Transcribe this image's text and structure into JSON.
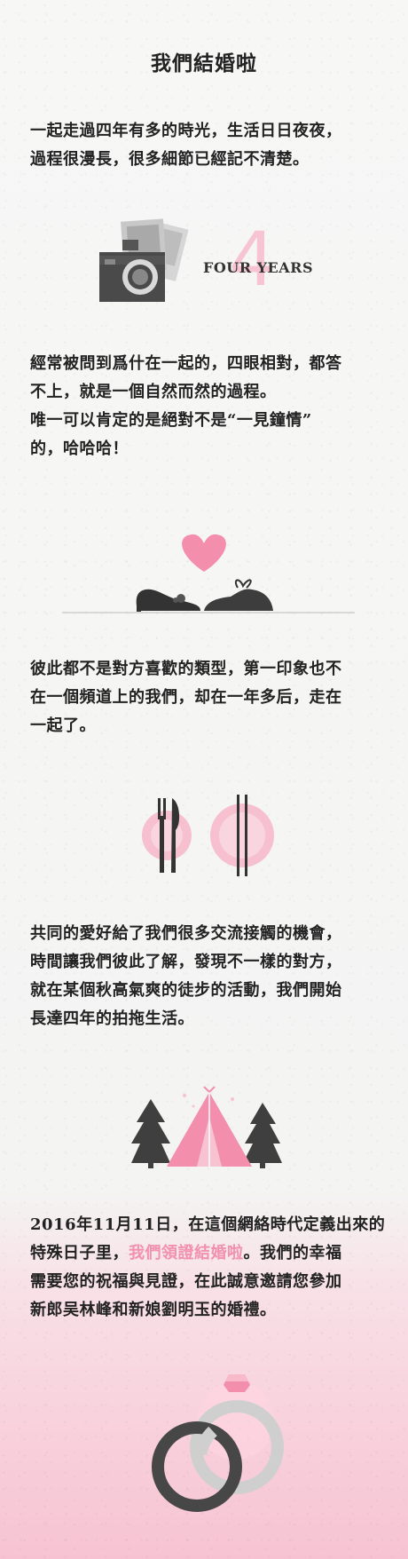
{
  "title": "我們結婚啦",
  "intro": {
    "lines": [
      "一起走過四年有多的時光，生活日日夜夜，",
      "過程很漫長，很多細節已經記不清楚。"
    ]
  },
  "four_years": {
    "label": "FOUR YEARS",
    "digit": "4"
  },
  "section1": {
    "lines": [
      "經常被問到爲什在一起的，四眼相對，都答",
      "不上，就是一個自然而然的過程。",
      "唯一可以肯定的是絕對不是“一見鐘情”",
      "的，哈哈哈！"
    ]
  },
  "section2": {
    "lines": [
      "彼此都不是對方喜歡的類型，第一印象也不",
      "在一個頻道上的我們，却在一年多后，走在",
      "一起了。"
    ]
  },
  "section3": {
    "lines": [
      "共同的愛好給了我們很多交流接觸的機會，",
      "時間讓我們彼此了解，發現不一樣的對方，",
      "就在某個秋高氣爽的徒步的活動，我們開始",
      "長達四年的拍拖生活。"
    ]
  },
  "section4": {
    "line1": "2016年11月11日，在這個網絡時代定義出來的",
    "line2_pre": "特殊日子里，",
    "line2_pink": "我們領證結婚啦",
    "line2_post": "。我們的幸福",
    "line3": "需要您的祝福與見證，在此誠意邀請您參加",
    "line4": "新郎吴林峰和新娘劉明玉的婚禮。"
  },
  "icons": {
    "camera": "camera-photos-icon",
    "shoes": "heart-shoes-icon",
    "dining": "plate-cutlery-icon",
    "camping": "tent-trees-icon",
    "rings": "wedding-rings-icon"
  },
  "colors": {
    "pink": "#f291ad",
    "light_pink": "#f6c4d2",
    "dark": "#444444"
  }
}
